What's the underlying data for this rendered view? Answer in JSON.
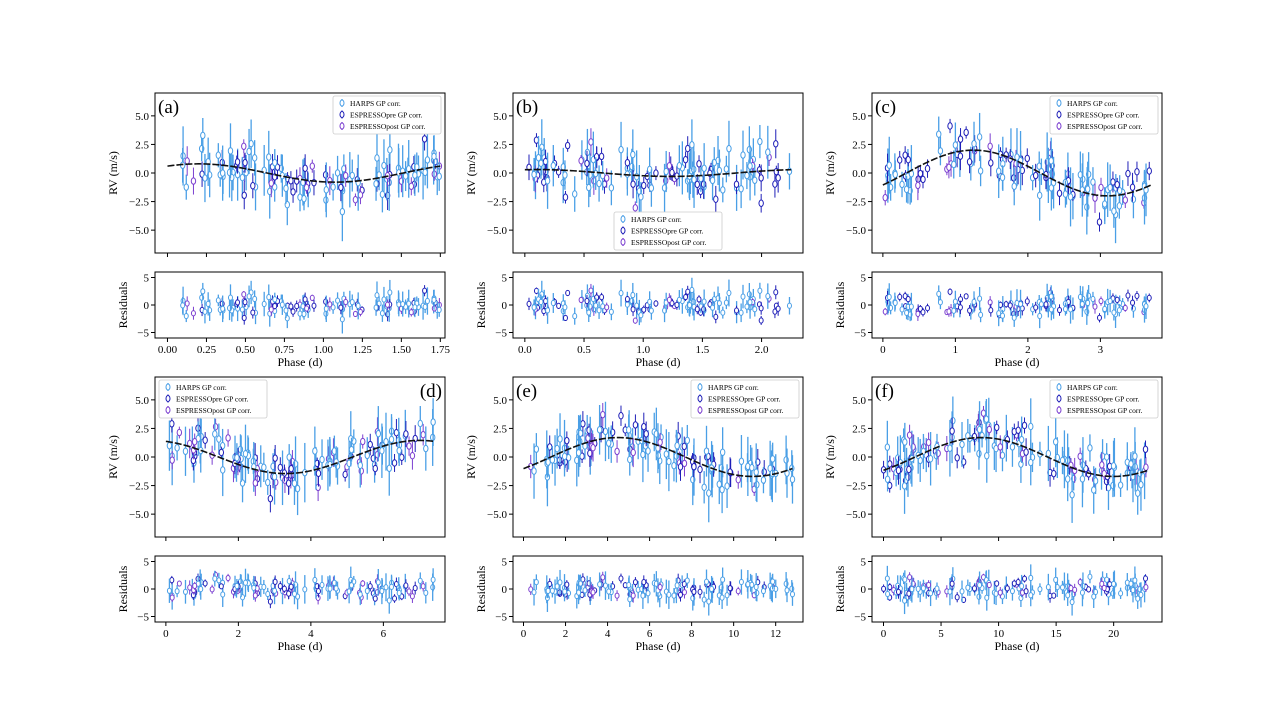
{
  "figure": {
    "legend_labels": [
      "HARPS GP corr.",
      "ESPRESSOpre GP corr.",
      "ESPRESSOpost GP corr."
    ],
    "colors": {
      "harps": "#4a9fe6",
      "pre": "#1f1fb8",
      "post": "#7b3fd0",
      "model": "#111111"
    }
  },
  "chart_data": [
    {
      "type": "scatter",
      "tag": "(a)",
      "legend_position": "top-right",
      "xlabel": "Phase (d)",
      "ylabel": "RV (m/s)",
      "res_label": "Residuals",
      "xlim": [
        -0.08,
        1.78
      ],
      "ylim": [
        -7,
        7
      ],
      "res_ylim": [
        -6,
        6
      ],
      "xticks": [
        0,
        0.25,
        0.5,
        0.75,
        1.0,
        1.25,
        1.5,
        1.75
      ],
      "xticklabels": [
        "0.00",
        "0.25",
        "0.50",
        "0.75",
        "1.00",
        "1.25",
        "1.50",
        "1.75"
      ],
      "yticks": [
        5,
        2.5,
        0,
        -2.5,
        -5
      ],
      "yticklabels": [
        "5.0",
        "2.5",
        "0.0",
        "−2.5",
        "−5.0"
      ],
      "res_yticks": [
        5,
        0,
        -5
      ],
      "res_yticklabels": [
        "5",
        "0",
        "−5"
      ],
      "model": {
        "amplitude": 0.8,
        "phase_peak": 0.2,
        "period": 1.75,
        "offset": 0.0
      },
      "n_points": 120,
      "scatter_rms": 1.4,
      "seed": 11
    },
    {
      "type": "scatter",
      "tag": "(b)",
      "legend_position": "lower-center",
      "xlabel": "Phase (d)",
      "ylabel": "RV (m/s)",
      "res_label": "Residuals",
      "xlim": [
        -0.1,
        2.35
      ],
      "ylim": [
        -7,
        7
      ],
      "res_ylim": [
        -6,
        6
      ],
      "xticks": [
        0,
        0.5,
        1.0,
        1.5,
        2.0
      ],
      "xticklabels": [
        "0.0",
        "0.5",
        "1.0",
        "1.5",
        "2.0"
      ],
      "yticks": [
        5,
        2.5,
        0,
        -2.5,
        -5
      ],
      "yticklabels": [
        "5.0",
        "2.5",
        "0.0",
        "−2.5",
        "−5.0"
      ],
      "res_yticks": [
        5,
        0,
        -5
      ],
      "res_yticklabels": [
        "5",
        "0",
        "−5"
      ],
      "model": {
        "amplitude": 0.3,
        "phase_peak": 0.1,
        "period": 2.25,
        "offset": 0.0
      },
      "n_points": 125,
      "scatter_rms": 1.4,
      "seed": 23
    },
    {
      "type": "scatter",
      "tag": "(c)",
      "legend_position": "top-right",
      "xlabel": "Phase (d)",
      "ylabel": "RV (m/s)",
      "res_label": "Residuals",
      "xlim": [
        -0.15,
        3.85
      ],
      "ylim": [
        -7,
        7
      ],
      "res_ylim": [
        -6,
        6
      ],
      "xticks": [
        0,
        1,
        2,
        3
      ],
      "xticklabels": [
        "0",
        "1",
        "2",
        "3"
      ],
      "yticks": [
        5,
        2.5,
        0,
        -2.5,
        -5
      ],
      "yticklabels": [
        "5.0",
        "2.5",
        "0.0",
        "−2.5",
        "−5.0"
      ],
      "res_yticks": [
        5,
        0,
        -5
      ],
      "res_yticklabels": [
        "5",
        "0",
        "−5"
      ],
      "model": {
        "amplitude": 2.0,
        "phase_peak": 1.25,
        "period": 3.7,
        "offset": 0.0
      },
      "n_points": 125,
      "scatter_rms": 1.3,
      "seed": 37
    },
    {
      "type": "scatter",
      "tag": "(d)",
      "legend_position": "top-left",
      "xlabel": "Phase (d)",
      "ylabel": "RV (m/s)",
      "res_label": "Residuals",
      "xlim": [
        -0.3,
        7.7
      ],
      "ylim": [
        -7,
        7
      ],
      "res_ylim": [
        -6,
        6
      ],
      "xticks": [
        0,
        2,
        4,
        6
      ],
      "xticklabels": [
        "0",
        "2",
        "4",
        "6"
      ],
      "yticks": [
        5,
        2.5,
        0,
        -2.5,
        -5
      ],
      "yticklabels": [
        "5.0",
        "2.5",
        "0.0",
        "−2.5",
        "−5.0"
      ],
      "res_yticks": [
        5,
        0,
        -5
      ],
      "res_yticklabels": [
        "5",
        "0",
        "−5"
      ],
      "model": {
        "amplitude": 1.45,
        "phase_peak": 7.0,
        "period": 7.4,
        "offset": 0.0
      },
      "n_points": 130,
      "scatter_rms": 1.4,
      "seed": 41
    },
    {
      "type": "scatter",
      "tag": "(e)",
      "legend_position": "top-right",
      "xlabel": "Phase (d)",
      "ylabel": "RV (m/s)",
      "res_label": "Residuals",
      "xlim": [
        -0.5,
        13.3
      ],
      "ylim": [
        -7,
        7
      ],
      "res_ylim": [
        -6,
        6
      ],
      "xticks": [
        0,
        2,
        4,
        6,
        8,
        10,
        12
      ],
      "xticklabels": [
        "0",
        "2",
        "4",
        "6",
        "8",
        "10",
        "12"
      ],
      "yticks": [
        5,
        2.5,
        0,
        -2.5,
        -5
      ],
      "yticklabels": [
        "5.0",
        "2.5",
        "0.0",
        "−2.5",
        "−5.0"
      ],
      "res_yticks": [
        5,
        0,
        -5
      ],
      "res_yticklabels": [
        "5",
        "0",
        "−5"
      ],
      "model": {
        "amplitude": 1.7,
        "phase_peak": 4.5,
        "period": 12.8,
        "offset": 0.0
      },
      "n_points": 130,
      "scatter_rms": 1.3,
      "seed": 53
    },
    {
      "type": "scatter",
      "tag": "(f)",
      "legend_position": "top-right",
      "xlabel": "Phase (d)",
      "ylabel": "RV (m/s)",
      "res_label": "Residuals",
      "xlim": [
        -1.0,
        24.2
      ],
      "ylim": [
        -7,
        7
      ],
      "res_ylim": [
        -6,
        6
      ],
      "xticks": [
        0,
        5,
        10,
        15,
        20
      ],
      "xticklabels": [
        "0",
        "5",
        "10",
        "15",
        "20"
      ],
      "yticks": [
        5,
        2.5,
        0,
        -2.5,
        -5
      ],
      "yticklabels": [
        "5.0",
        "2.5",
        "0.0",
        "−2.5",
        "−5.0"
      ],
      "res_yticks": [
        5,
        0,
        -5
      ],
      "res_yticklabels": [
        "5",
        "0",
        "−5"
      ],
      "model": {
        "amplitude": 1.7,
        "phase_peak": 8.5,
        "period": 23.0,
        "offset": 0.0
      },
      "n_points": 135,
      "scatter_rms": 1.3,
      "seed": 67
    }
  ]
}
